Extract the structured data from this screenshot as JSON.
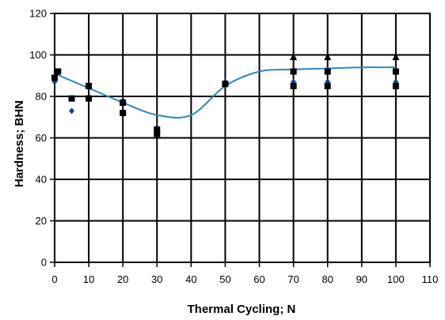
{
  "chart_data": {
    "type": "scatter",
    "title": "",
    "xlabel": "Thermal Cycling; N",
    "ylabel": "Hardness; BHN",
    "xlim": [
      0,
      110
    ],
    "ylim": [
      0,
      120
    ],
    "x_ticks": [
      0,
      10,
      20,
      30,
      40,
      50,
      60,
      70,
      80,
      90,
      100,
      110
    ],
    "y_ticks": [
      0,
      20,
      40,
      60,
      80,
      100,
      120
    ],
    "grid": true,
    "legend": "none",
    "series": [
      {
        "marker": "diamond",
        "color": "#1f3a93",
        "x": [
          0,
          5,
          10,
          20,
          30,
          50,
          70,
          80,
          100
        ],
        "y": [
          87,
          73,
          79,
          78,
          65,
          87,
          87,
          87,
          87
        ]
      },
      {
        "marker": "square",
        "color": "#000000",
        "x": [
          0,
          1,
          5,
          10,
          10,
          20,
          20,
          30,
          30,
          50,
          70,
          70,
          80,
          80,
          100,
          100
        ],
        "y": [
          89,
          92,
          79,
          85,
          79,
          77,
          72,
          64,
          62,
          86,
          92,
          85,
          92,
          85,
          92,
          85
        ]
      },
      {
        "marker": "triangle",
        "color": "#000000",
        "x": [
          70,
          80,
          100
        ],
        "y": [
          99,
          99,
          99
        ]
      },
      {
        "type": "line",
        "smooth": true,
        "color": "#2e86c1",
        "x": [
          0,
          10,
          20,
          30,
          40,
          50,
          60,
          70,
          80,
          90,
          100
        ],
        "y": [
          91,
          84,
          77,
          71,
          71,
          85,
          92,
          93,
          93.5,
          94,
          94
        ]
      }
    ]
  }
}
